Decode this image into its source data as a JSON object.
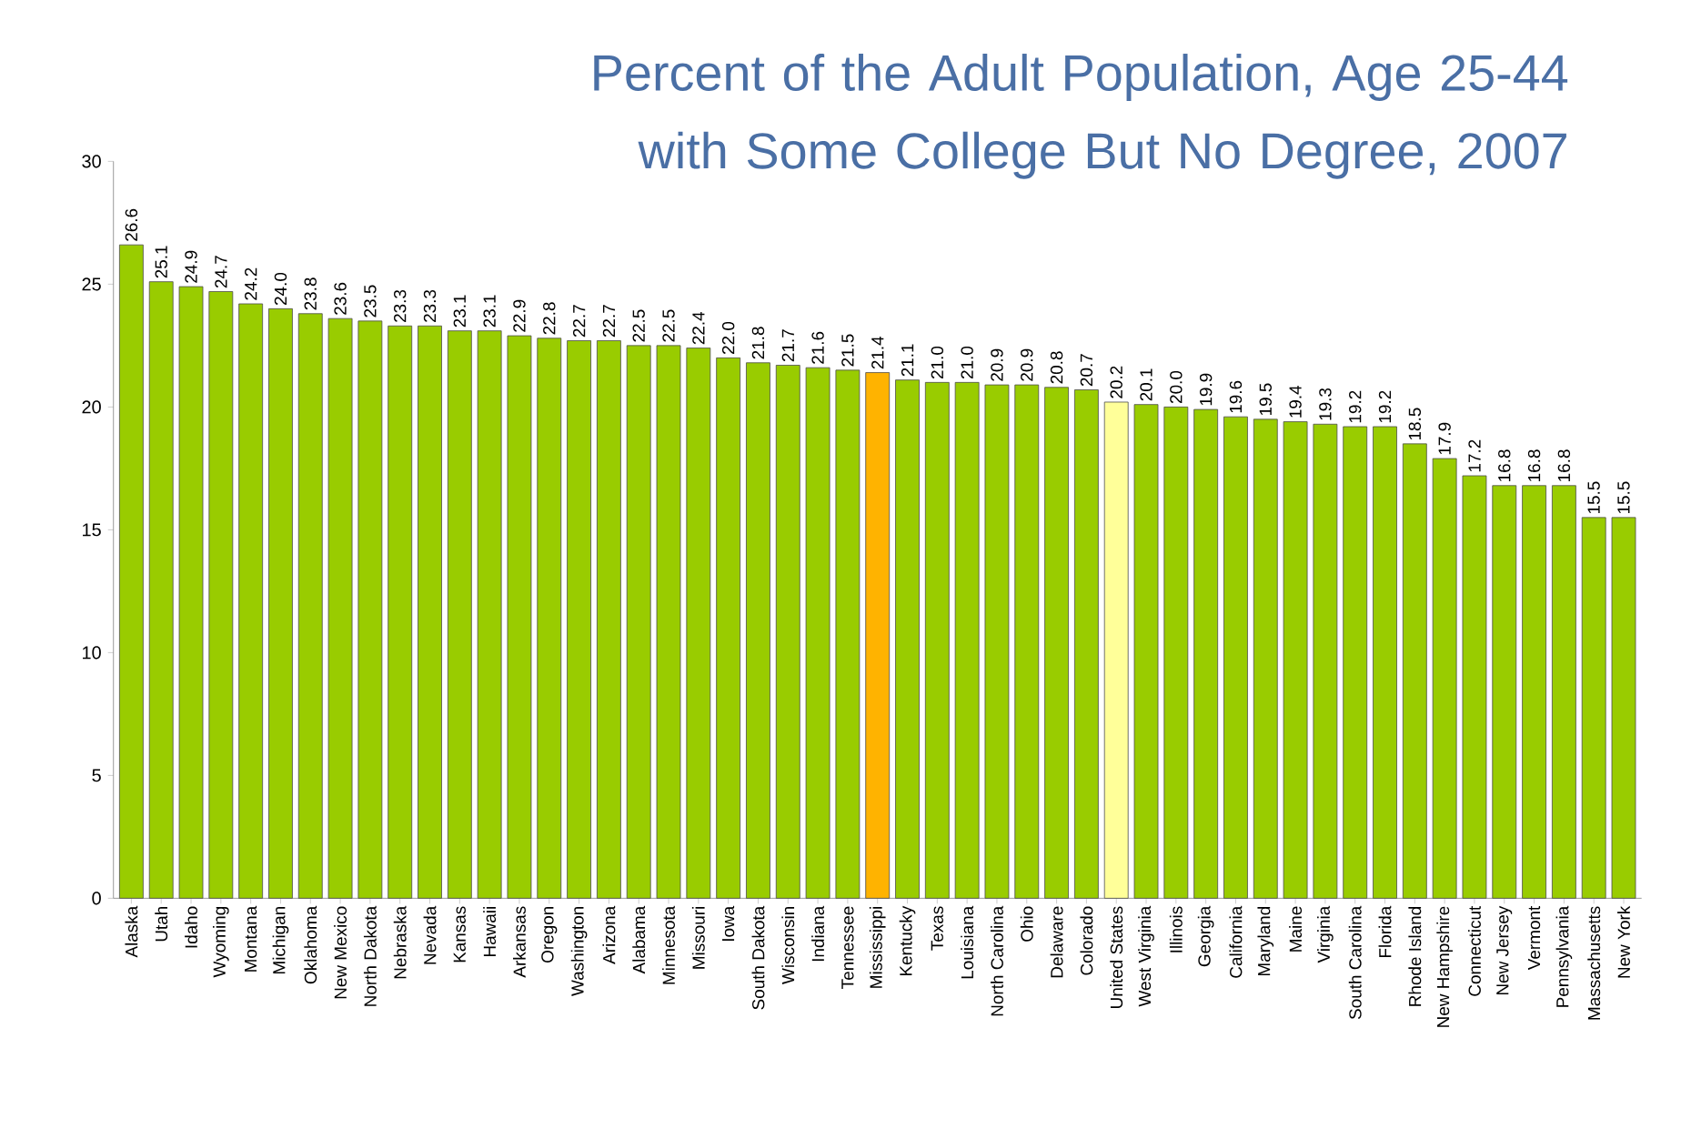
{
  "chart_data": {
    "type": "bar",
    "title": "Percent of the Adult Population, Age 25-44 with Some College But No Degree, 2007",
    "categories": [
      "Alaska",
      "Utah",
      "Idaho",
      "Wyoming",
      "Montana",
      "Michigan",
      "Oklahoma",
      "New Mexico",
      "North Dakota",
      "Nebraska",
      "Nevada",
      "Kansas",
      "Hawaii",
      "Arkansas",
      "Oregon",
      "Washington",
      "Arizona",
      "Alabama",
      "Minnesota",
      "Missouri",
      "Iowa",
      "South Dakota",
      "Wisconsin",
      "Indiana",
      "Tennessee",
      "Mississippi",
      "Kentucky",
      "Texas",
      "Louisiana",
      "North Carolina",
      "Ohio",
      "Delaware",
      "Colorado",
      "United States",
      "West Virginia",
      "Illinois",
      "Georgia",
      "California",
      "Maryland",
      "Maine",
      "Virginia",
      "South Carolina",
      "Florida",
      "Rhode Island",
      "New Hampshire",
      "Connecticut",
      "New Jersey",
      "Vermont",
      "Pennsylvania",
      "Massachusetts",
      "New York"
    ],
    "values": [
      26.6,
      25.1,
      24.9,
      24.7,
      24.2,
      24.0,
      23.8,
      23.6,
      23.5,
      23.3,
      23.3,
      23.1,
      23.1,
      22.9,
      22.8,
      22.7,
      22.7,
      22.5,
      22.5,
      22.4,
      22.0,
      21.8,
      21.7,
      21.6,
      21.5,
      21.4,
      21.1,
      21.0,
      21.0,
      20.9,
      20.9,
      20.8,
      20.7,
      20.2,
      20.1,
      20.0,
      19.9,
      19.6,
      19.5,
      19.4,
      19.3,
      19.2,
      19.2,
      18.5,
      17.9,
      17.2,
      16.8,
      16.8,
      16.8,
      15.5,
      15.5
    ],
    "value_labels": [
      "26.6",
      "25.1",
      "24.9",
      "24.7",
      "24.2",
      "24.0",
      "23.8",
      "23.6",
      "23.5",
      "23.3",
      "23.3",
      "23.1",
      "23.1",
      "22.9",
      "22.8",
      "22.7",
      "22.7",
      "22.5",
      "22.5",
      "22.4",
      "22.0",
      "21.8",
      "21.7",
      "21.6",
      "21.5",
      "21.4",
      "21.1",
      "21.0",
      "21.0",
      "20.9",
      "20.9",
      "20.8",
      "20.7",
      "20.2",
      "20.1",
      "20.0",
      "19.9",
      "19.6",
      "19.5",
      "19.4",
      "19.3",
      "19.2",
      "19.2",
      "18.5",
      "17.9",
      "17.2",
      "16.8",
      "16.8",
      "16.8",
      "15.5",
      "15.5"
    ],
    "colors": [
      "#99cc00",
      "#99cc00",
      "#99cc00",
      "#99cc00",
      "#99cc00",
      "#99cc00",
      "#99cc00",
      "#99cc00",
      "#99cc00",
      "#99cc00",
      "#99cc00",
      "#99cc00",
      "#99cc00",
      "#99cc00",
      "#99cc00",
      "#99cc00",
      "#99cc00",
      "#99cc00",
      "#99cc00",
      "#99cc00",
      "#99cc00",
      "#99cc00",
      "#99cc00",
      "#99cc00",
      "#99cc00",
      "#ffb300",
      "#99cc00",
      "#99cc00",
      "#99cc00",
      "#99cc00",
      "#99cc00",
      "#99cc00",
      "#99cc00",
      "#ffff99",
      "#99cc00",
      "#99cc00",
      "#99cc00",
      "#99cc00",
      "#99cc00",
      "#99cc00",
      "#99cc00",
      "#99cc00",
      "#99cc00",
      "#99cc00",
      "#99cc00",
      "#99cc00",
      "#99cc00",
      "#99cc00",
      "#99cc00",
      "#99cc00",
      "#99cc00"
    ],
    "ylim": [
      0,
      30
    ],
    "yticks": [
      0,
      5,
      10,
      15,
      20,
      25,
      30
    ]
  }
}
